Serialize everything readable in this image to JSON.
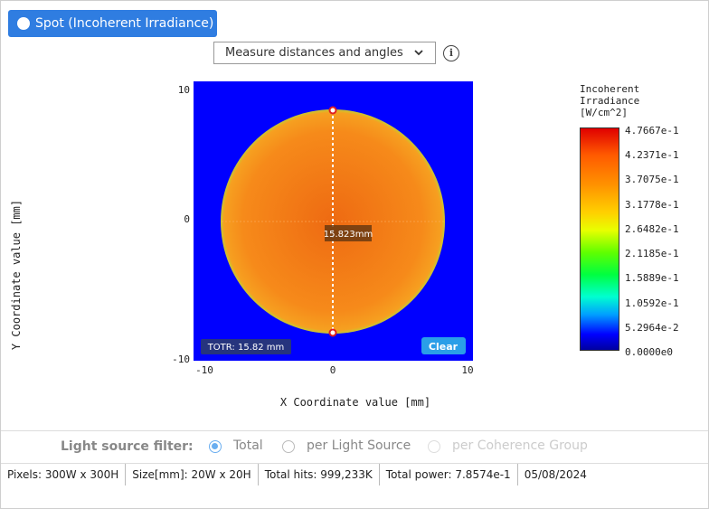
{
  "header": {
    "button": "Spot (Incoherent Irradiance)",
    "dropdown": "Measure distances and angles"
  },
  "plot": {
    "x_label": "X Coordinate value [mm]",
    "y_label": "Y Coordinate value [mm]",
    "x_ticks": [
      "-10",
      "0",
      "10"
    ],
    "y_ticks": [
      "10",
      "0",
      "-10"
    ],
    "measurement": "15.823mm",
    "readout": "TOTR: 15.82 mm",
    "clear": "Clear"
  },
  "colorbar": {
    "title": [
      "Incoherent",
      "Irradiance",
      "[W/cm^2]"
    ],
    "labels": [
      "4.7667e-1",
      "4.2371e-1",
      "3.7075e-1",
      "3.1778e-1",
      "2.6482e-1",
      "2.1185e-1",
      "1.5889e-1",
      "1.0592e-1",
      "5.2964e-2",
      "0.0000e0"
    ]
  },
  "filter": {
    "label": "Light source filter:",
    "options": [
      "Total",
      "per Light Source",
      "per Coherence Group"
    ]
  },
  "status": [
    "Pixels: 300W x 300H",
    "Size[mm]: 20W x 20H",
    "Total hits: 999,233K",
    "Total power: 7.8574e-1",
    "05/08/2024"
  ]
}
